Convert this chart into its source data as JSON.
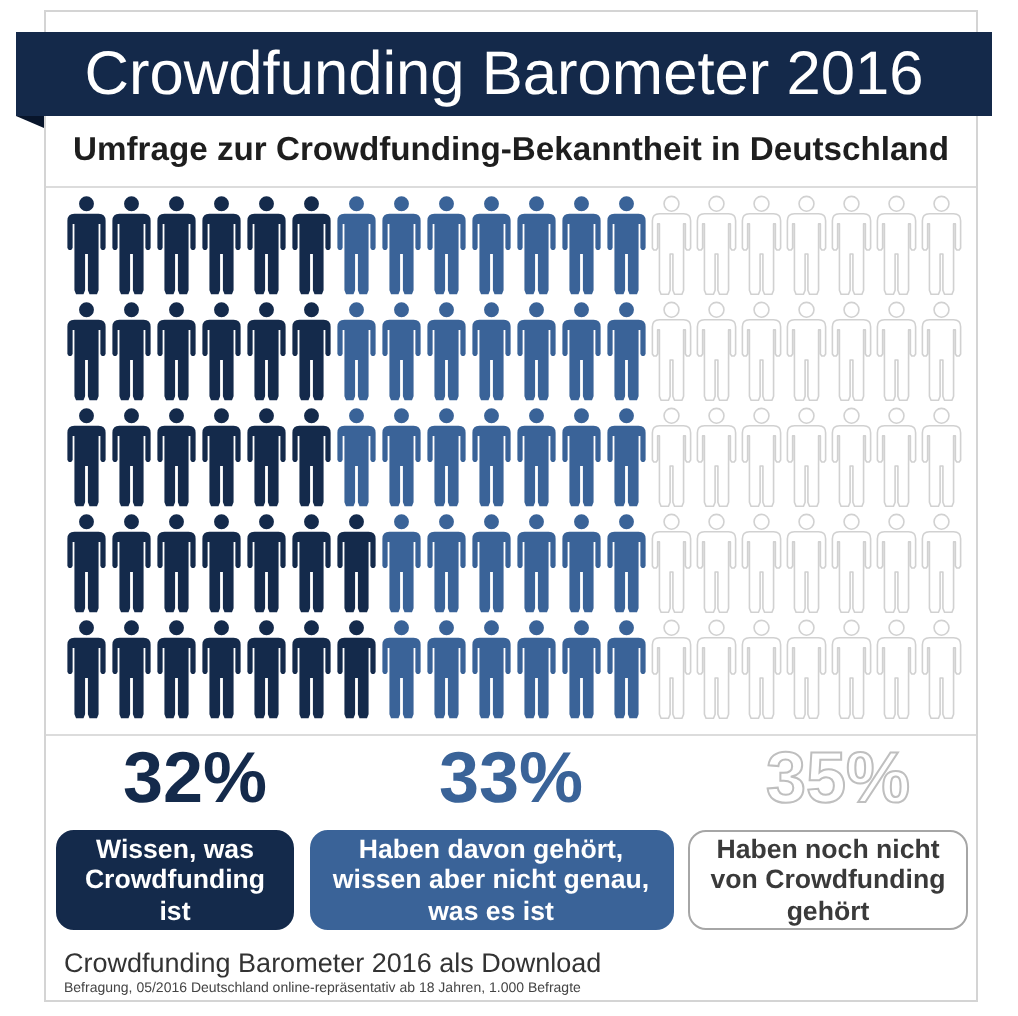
{
  "chart_data": {
    "type": "other",
    "title": "Crowdfunding Barometer 2016",
    "subtitle": "Umfrage zur Crowdfunding-Bekanntheit in Deutschland",
    "categories": [
      "Wissen, was Crowdfunding ist",
      "Haben davon gehört, wissen aber nicht genau, was es ist",
      "Haben noch nicht von Crowdfunding gehört"
    ],
    "values": [
      32,
      33,
      35
    ],
    "value_labels": [
      "32%",
      "33%",
      "35%"
    ],
    "colors": [
      "#142a4b",
      "#3a6398",
      "#ffffff"
    ],
    "annotations": [
      "Crowdfunding Barometer 2016 als Download",
      "Befragung, 05/2016 Deutschland online-repräsentativ ab 18 Jahren, 1.000 Befragte"
    ]
  }
}
